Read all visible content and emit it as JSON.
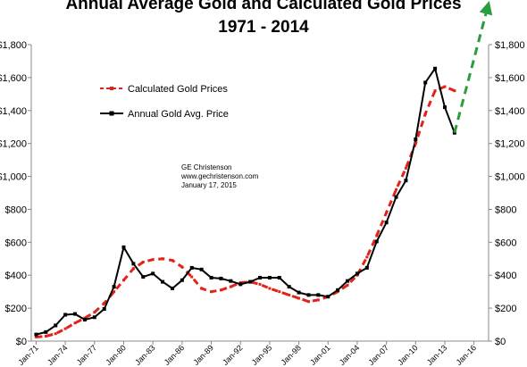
{
  "chart_data": {
    "type": "line",
    "title_line1": "Annual Average Gold and Calculated Gold Prices",
    "title_line2": "1971 - 2014",
    "xlabel": "",
    "ylabel": "",
    "ylim": [
      0,
      1800
    ],
    "xlim": [
      1970.5,
      2017.5
    ],
    "grid": false,
    "legend_position": "upper-left",
    "y_ticks": [
      0,
      200,
      400,
      600,
      800,
      1000,
      1200,
      1400,
      1600,
      1800
    ],
    "y_tick_labels": [
      "$0",
      "$200",
      "$400",
      "$600",
      "$800",
      "$1,000",
      "$1,200",
      "$1,400",
      "$1,600",
      "$1,800"
    ],
    "x_ticks": [
      1971,
      1974,
      1977,
      1980,
      1983,
      1986,
      1989,
      1992,
      1995,
      1998,
      2001,
      2004,
      2007,
      2010,
      2013,
      2016
    ],
    "x_tick_labels": [
      "Jan-71",
      "Jan-74",
      "Jan-77",
      "Jan-80",
      "Jan-83",
      "Jan-86",
      "Jan-89",
      "Jan-92",
      "Jan-95",
      "Jan-98",
      "Jan-01",
      "Jan-04",
      "Jan-07",
      "Jan-10",
      "Jan-13",
      "Jan-16"
    ],
    "series": [
      {
        "name": "Calculated Gold Prices",
        "color": "#e2231a",
        "style": "dashed",
        "marker": "small-square",
        "x": [
          1971,
          1972,
          1973,
          1974,
          1975,
          1976,
          1977,
          1978,
          1979,
          1980,
          1981,
          1982,
          1983,
          1984,
          1985,
          1986,
          1987,
          1988,
          1989,
          1990,
          1991,
          1992,
          1993,
          1994,
          1995,
          1996,
          1997,
          1998,
          1999,
          2000,
          2001,
          2002,
          2003,
          2004,
          2005,
          2006,
          2007,
          2008,
          2009,
          2010,
          2011,
          2012,
          2013,
          2014
        ],
        "values": [
          25,
          30,
          45,
          75,
          110,
          140,
          175,
          230,
          300,
          370,
          440,
          480,
          495,
          500,
          490,
          450,
          390,
          320,
          300,
          310,
          330,
          355,
          360,
          345,
          320,
          300,
          280,
          260,
          240,
          250,
          270,
          300,
          340,
          400,
          510,
          640,
          780,
          920,
          1050,
          1200,
          1380,
          1520,
          1545,
          1520
        ]
      },
      {
        "name": "Annual Gold Avg. Price",
        "color": "#000000",
        "style": "solid",
        "marker": "square",
        "x": [
          1971,
          1972,
          1973,
          1974,
          1975,
          1976,
          1977,
          1978,
          1979,
          1980,
          1981,
          1982,
          1983,
          1984,
          1985,
          1986,
          1987,
          1988,
          1989,
          1990,
          1991,
          1992,
          1993,
          1994,
          1995,
          1996,
          1997,
          1998,
          1999,
          2000,
          2001,
          2002,
          2003,
          2004,
          2005,
          2006,
          2007,
          2008,
          2009,
          2010,
          2011,
          2012,
          2013,
          2014
        ],
        "values": [
          40,
          55,
          95,
          160,
          165,
          130,
          145,
          195,
          330,
          570,
          470,
          390,
          410,
          360,
          320,
          370,
          445,
          435,
          385,
          380,
          365,
          345,
          360,
          385,
          385,
          385,
          330,
          295,
          280,
          280,
          270,
          310,
          365,
          410,
          445,
          605,
          720,
          875,
          975,
          1225,
          1570,
          1655,
          1420,
          1265
        ]
      }
    ],
    "projection": {
      "color": "#2a9d3c",
      "style": "dashed",
      "arrow": true,
      "from": [
        2014,
        1265
      ],
      "to": [
        2017.5,
        2050
      ]
    }
  },
  "annotation": {
    "line1": "GE Christenson",
    "line2": "www.gechristenson.com",
    "line3": "January 17, 2015"
  }
}
